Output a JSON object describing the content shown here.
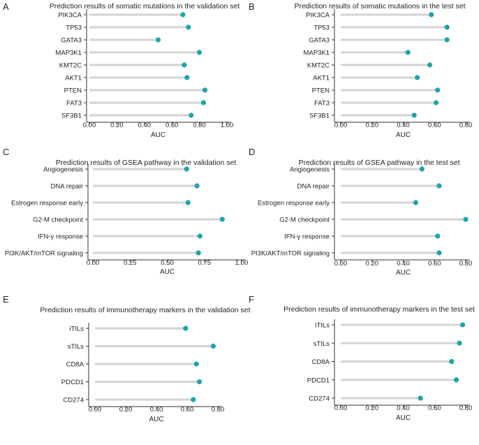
{
  "style": {
    "stick_color": "#d3d3d3",
    "dot_color": "#1aa5ad",
    "axis_color": "#333333"
  },
  "chart_data": [
    {
      "panel": "A",
      "type": "lollipop",
      "title": "Prediction results of somatic mutations in the validation set",
      "xlabel": "AUC",
      "xlim": [
        0,
        1.0
      ],
      "xticks": [
        0,
        0.2,
        0.4,
        0.6,
        0.8,
        1.0
      ],
      "tick_labels": [
        "0.00",
        "0.20",
        "0.40",
        "0.60",
        "0.80",
        "1.00"
      ],
      "categories": [
        "PIK3CA",
        "TP53",
        "GATA3",
        "MAP3K1",
        "KMT2C",
        "AKT1",
        "PTEN",
        "FAT3",
        "SF3B1"
      ],
      "values": [
        0.68,
        0.72,
        0.5,
        0.8,
        0.69,
        0.71,
        0.84,
        0.83,
        0.74
      ]
    },
    {
      "panel": "B",
      "type": "lollipop",
      "title": "Prediction results of somatic mutations in the test set",
      "xlabel": "AUC",
      "xlim": [
        0,
        0.8
      ],
      "xticks": [
        0,
        0.2,
        0.4,
        0.6,
        0.8
      ],
      "tick_labels": [
        "0.00",
        "0.20",
        "0.40",
        "0.60",
        "0.80"
      ],
      "categories": [
        "PIK3CA",
        "TP53",
        "GATA3",
        "MAP3K1",
        "KMT2C",
        "AKT1",
        "PTEN",
        "FAT3",
        "SF3B1"
      ],
      "values": [
        0.58,
        0.68,
        0.68,
        0.43,
        0.57,
        0.49,
        0.62,
        0.61,
        0.47
      ]
    },
    {
      "panel": "C",
      "type": "lollipop",
      "title": "Prediction results of GSEA pathway in the validation set",
      "xlabel": "AUC",
      "xlim": [
        0,
        1.0
      ],
      "xticks": [
        0,
        0.25,
        0.5,
        0.75,
        1.0
      ],
      "tick_labels": [
        "0.00",
        "0.25",
        "0.50",
        "0.75",
        "1.00"
      ],
      "categories": [
        "Angiogenesis",
        "DNA repair",
        "Estrogen response early",
        "G2-M checkpoint",
        "IFN-γ response",
        "PI3K/AKT/mTOR signaling"
      ],
      "values": [
        0.63,
        0.7,
        0.64,
        0.87,
        0.72,
        0.71
      ]
    },
    {
      "panel": "D",
      "type": "lollipop",
      "title": "Prediction results of GSEA pathway in the test set",
      "xlabel": "AUC",
      "xlim": [
        0,
        0.8
      ],
      "xticks": [
        0,
        0.2,
        0.4,
        0.6,
        0.8
      ],
      "tick_labels": [
        "0.00",
        "0.20",
        "0.40",
        "0.60",
        "0.80"
      ],
      "categories": [
        "Angiogenesis",
        "DNA repair",
        "Estrogen response early",
        "G2-M checkpoint",
        "IFN-γ response",
        "PI3K/AKT/mTOR signaling"
      ],
      "values": [
        0.52,
        0.63,
        0.48,
        0.8,
        0.62,
        0.63
      ]
    },
    {
      "panel": "E",
      "type": "lollipop",
      "title": "Prediction results of immunotherapy markers in the validation set",
      "xlabel": "AUC",
      "xlim": [
        0,
        0.8
      ],
      "xticks": [
        0,
        0.2,
        0.4,
        0.6,
        0.8
      ],
      "tick_labels": [
        "0.00",
        "0.20",
        "0.40",
        "0.60",
        "0.80"
      ],
      "categories": [
        "iTILs",
        "sTILs",
        "CD8A",
        "PDCD1",
        "CD274"
      ],
      "values": [
        0.59,
        0.77,
        0.66,
        0.68,
        0.64
      ]
    },
    {
      "panel": "F",
      "type": "lollipop",
      "title": "Prediction results of immunotherapy markers in the test set",
      "xlabel": "AUC",
      "xlim": [
        0,
        0.8
      ],
      "xticks": [
        0,
        0.2,
        0.4,
        0.6,
        0.8
      ],
      "tick_labels": [
        "0.00",
        "0.20",
        "0.40",
        "0.60",
        "0.80"
      ],
      "categories": [
        "iTILs",
        "sTILs",
        "CD8A",
        "PDCD1",
        "CD274"
      ],
      "values": [
        0.78,
        0.76,
        0.71,
        0.74,
        0.51
      ]
    }
  ]
}
